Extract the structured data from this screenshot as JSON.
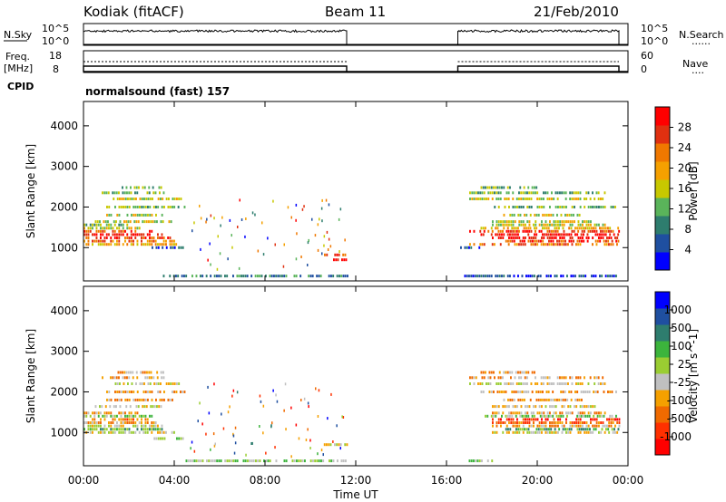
{
  "header": {
    "station": "Kodiak (fitACF)",
    "beam": "Beam 11",
    "date": "21/Feb/2010"
  },
  "panels": {
    "nsky": {
      "left_label": "N.Sky",
      "ticks_left": [
        "10^5",
        "10^0"
      ],
      "ticks_right": [
        "10^5",
        "10^0"
      ],
      "right_label": "N.Search",
      "right_legend": "......"
    },
    "freq": {
      "left_label_top": "Freq.",
      "left_label_bottom": "[MHz]",
      "ticks_left": [
        "18",
        "8"
      ],
      "ticks_right": [
        "60",
        "0"
      ],
      "right_label": "Nave",
      "right_legend": "...."
    },
    "cpid": {
      "label": "CPID",
      "text": "normalsound (fast) 157"
    }
  },
  "chart_data": [
    {
      "type": "heatmap",
      "name": "power",
      "ylabel": "Slant Range [km]",
      "yticks": [
        "4000",
        "3000",
        "2000",
        "1000"
      ],
      "ylim": [
        180,
        4600
      ],
      "colorbar_label": "Power [dB]",
      "colorbar_ticks": [
        "28",
        "24",
        "20",
        "16",
        "12",
        "8",
        "4"
      ],
      "colors": [
        "#0000ff",
        "#1f4fa0",
        "#2e7d6e",
        "#5ab45a",
        "#c8c800",
        "#f5a000",
        "#f07800",
        "#e03010",
        "#ff0000"
      ],
      "time_segments": [
        [
          0.0,
          11.6
        ],
        [
          16.5,
          23.6
        ]
      ],
      "bands": [
        {
          "range": 300,
          "t0": 3.5,
          "t1": 11.6,
          "level": 2
        },
        {
          "range": 300,
          "t0": 16.6,
          "t1": 23.5,
          "level": 1
        },
        {
          "range": 700,
          "t0": 11.0,
          "t1": 11.6,
          "level": 8
        },
        {
          "range": 820,
          "t0": 10.6,
          "t1": 11.6,
          "level": 7
        },
        {
          "range": 1000,
          "t0": 3.0,
          "t1": 4.5,
          "level": 1
        },
        {
          "range": 1000,
          "t0": 16.6,
          "t1": 17.5,
          "level": 1
        },
        {
          "range": 1080,
          "t0": 0.0,
          "t1": 4.2,
          "level": 5
        },
        {
          "range": 1080,
          "t0": 17.0,
          "t1": 23.6,
          "level": 6
        },
        {
          "range": 1160,
          "t0": 0.0,
          "t1": 4.0,
          "level": 6
        },
        {
          "range": 1160,
          "t0": 18.5,
          "t1": 23.6,
          "level": 7
        },
        {
          "range": 1240,
          "t0": 0.0,
          "t1": 3.8,
          "level": 7
        },
        {
          "range": 1240,
          "t0": 18.0,
          "t1": 23.6,
          "level": 8
        },
        {
          "range": 1320,
          "t0": 0.0,
          "t1": 3.5,
          "level": 8
        },
        {
          "range": 1320,
          "t0": 17.5,
          "t1": 23.6,
          "level": 8
        },
        {
          "range": 1400,
          "t0": 0.0,
          "t1": 3.0,
          "level": 7
        },
        {
          "range": 1400,
          "t0": 17.0,
          "t1": 23.6,
          "level": 7
        },
        {
          "range": 1480,
          "t0": 0.0,
          "t1": 2.5,
          "level": 4
        },
        {
          "range": 1480,
          "t0": 17.5,
          "t1": 23.6,
          "level": 5
        },
        {
          "range": 1560,
          "t0": 0.0,
          "t1": 2.0,
          "level": 3
        },
        {
          "range": 1560,
          "t0": 18.0,
          "t1": 23.0,
          "level": 4
        },
        {
          "range": 1640,
          "t0": 0.5,
          "t1": 4.0,
          "level": 4
        },
        {
          "range": 1640,
          "t0": 18.0,
          "t1": 22.5,
          "level": 4
        },
        {
          "range": 1800,
          "t0": 1.0,
          "t1": 3.5,
          "level": 4
        },
        {
          "range": 1800,
          "t0": 18.5,
          "t1": 22.0,
          "level": 4
        },
        {
          "range": 2000,
          "t0": 1.0,
          "t1": 4.5,
          "level": 3
        },
        {
          "range": 2000,
          "t0": 18.0,
          "t1": 23.5,
          "level": 3
        },
        {
          "range": 2200,
          "t0": 1.2,
          "t1": 4.5,
          "level": 4
        },
        {
          "range": 2200,
          "t0": 17.0,
          "t1": 23.0,
          "level": 4
        },
        {
          "range": 2350,
          "t0": 0.8,
          "t1": 3.5,
          "level": 3
        },
        {
          "range": 2350,
          "t0": 17.0,
          "t1": 23.0,
          "level": 3
        },
        {
          "range": 2480,
          "t0": 1.5,
          "t1": 3.5,
          "level": 3
        },
        {
          "range": 2480,
          "t0": 17.5,
          "t1": 20.0,
          "level": 3
        }
      ]
    },
    {
      "type": "heatmap",
      "name": "velocity",
      "ylabel": "Slant Range [km]",
      "yticks": [
        "4000",
        "3000",
        "2000",
        "1000"
      ],
      "ylim": [
        180,
        4600
      ],
      "xlabel": "Time UT",
      "xticks": [
        "00:00",
        "04:00",
        "08:00",
        "12:00",
        "16:00",
        "20:00",
        "00:00"
      ],
      "xlim": [
        0,
        24
      ],
      "colorbar_label": "Velocity [m s^-1]",
      "colorbar_ticks": [
        "1000",
        "500",
        "100",
        "25",
        "-25",
        "-100",
        "-500",
        "-1000"
      ],
      "colors": [
        "#ff0000",
        "#ff3000",
        "#f06a00",
        "#f5a000",
        "#c0c0c0",
        "#9acd32",
        "#3cb43c",
        "#2e7d6e",
        "#1f4fa0",
        "#0000ff"
      ],
      "time_segments": [
        [
          0.0,
          11.6
        ],
        [
          16.5,
          23.6
        ]
      ],
      "bands": [
        {
          "range": 300,
          "t0": 4.5,
          "t1": 11.6,
          "level": 5
        },
        {
          "range": 300,
          "t0": 16.8,
          "t1": 18.0,
          "level": 5
        },
        {
          "range": 700,
          "t0": 10.5,
          "t1": 11.6,
          "level": 4
        },
        {
          "range": 850,
          "t0": 3.0,
          "t1": 4.5,
          "level": 5
        },
        {
          "range": 1000,
          "t0": 0.0,
          "t1": 4.0,
          "level": 4
        },
        {
          "range": 1000,
          "t0": 18.0,
          "t1": 23.6,
          "level": 4
        },
        {
          "range": 1080,
          "t0": 0.0,
          "t1": 3.5,
          "level": 6
        },
        {
          "range": 1080,
          "t0": 18.5,
          "t1": 23.6,
          "level": 6
        },
        {
          "range": 1160,
          "t0": 0.0,
          "t1": 3.5,
          "level": 4
        },
        {
          "range": 1160,
          "t0": 18.0,
          "t1": 23.6,
          "level": 3
        },
        {
          "range": 1240,
          "t0": 0.0,
          "t1": 3.2,
          "level": 3
        },
        {
          "range": 1240,
          "t0": 18.0,
          "t1": 23.6,
          "level": 2
        },
        {
          "range": 1320,
          "t0": 0.0,
          "t1": 3.0,
          "level": 2
        },
        {
          "range": 1320,
          "t0": 18.0,
          "t1": 23.6,
          "level": 1
        },
        {
          "range": 1400,
          "t0": 0.0,
          "t1": 3.0,
          "level": 5
        },
        {
          "range": 1400,
          "t0": 17.5,
          "t1": 23.5,
          "level": 5
        },
        {
          "range": 1480,
          "t0": 0.0,
          "t1": 2.5,
          "level": 3
        },
        {
          "range": 1480,
          "t0": 18.0,
          "t1": 23.0,
          "level": 3
        },
        {
          "range": 1640,
          "t0": 0.5,
          "t1": 3.5,
          "level": 4
        },
        {
          "range": 1640,
          "t0": 18.0,
          "t1": 22.5,
          "level": 4
        },
        {
          "range": 1800,
          "t0": 1.0,
          "t1": 4.0,
          "level": 3
        },
        {
          "range": 1800,
          "t0": 18.5,
          "t1": 22.0,
          "level": 3
        },
        {
          "range": 2000,
          "t0": 1.0,
          "t1": 4.5,
          "level": 3
        },
        {
          "range": 2000,
          "t0": 17.5,
          "t1": 23.5,
          "level": 3
        },
        {
          "range": 2200,
          "t0": 1.2,
          "t1": 4.2,
          "level": 4
        },
        {
          "range": 2200,
          "t0": 17.0,
          "t1": 23.0,
          "level": 4
        },
        {
          "range": 2350,
          "t0": 0.8,
          "t1": 3.5,
          "level": 3
        },
        {
          "range": 2350,
          "t0": 17.0,
          "t1": 23.0,
          "level": 3
        },
        {
          "range": 2480,
          "t0": 1.5,
          "t1": 3.5,
          "level": 3
        },
        {
          "range": 2480,
          "t0": 17.5,
          "t1": 20.0,
          "level": 3
        }
      ]
    }
  ]
}
